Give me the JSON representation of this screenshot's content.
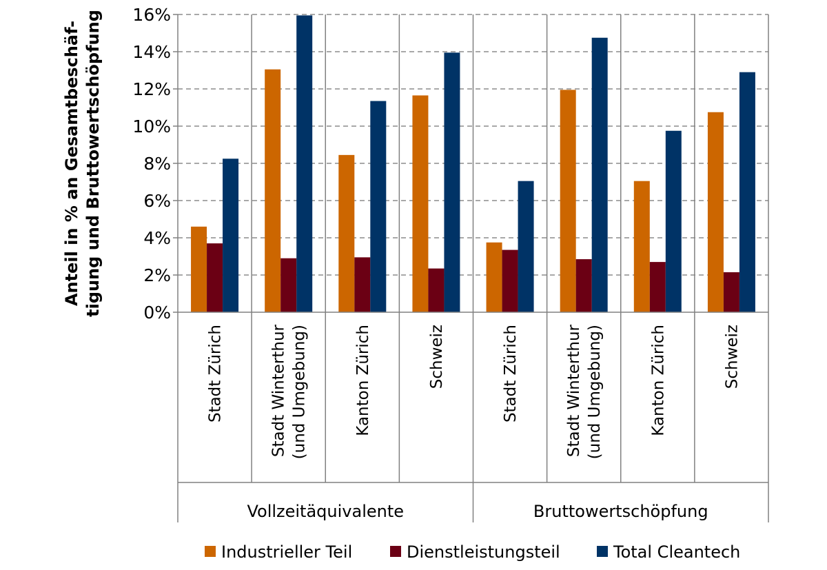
{
  "chart_data": {
    "type": "bar",
    "ylabel_lines": [
      "Anteil in % an Gesamtbeschäf-",
      "tigung  und Bruttowertschöpfung"
    ],
    "ylim": [
      0,
      16
    ],
    "ytick_labels": [
      "0%",
      "2%",
      "4%",
      "6%",
      "8%",
      "10%",
      "12%",
      "14%",
      "16%"
    ],
    "grid": true,
    "legend_position": "bottom",
    "groups": [
      {
        "label": "Vollzeitäquivalente",
        "categories": [
          {
            "lines": [
              "Stadt Zürich"
            ]
          },
          {
            "lines": [
              "Stadt Winterthur",
              "(und Umgebung)"
            ]
          },
          {
            "lines": [
              "Kanton Zürich"
            ]
          },
          {
            "lines": [
              "Schweiz"
            ]
          }
        ]
      },
      {
        "label": "Bruttowertschöpfung",
        "categories": [
          {
            "lines": [
              "Stadt Zürich"
            ]
          },
          {
            "lines": [
              "Stadt Winterthur",
              "(und Umgebung)"
            ]
          },
          {
            "lines": [
              "Kanton Zürich"
            ]
          },
          {
            "lines": [
              "Schweiz"
            ]
          }
        ]
      }
    ],
    "series": [
      {
        "name": "Industrieller Teil",
        "color": "#CC6600",
        "values": [
          4.6,
          13.05,
          8.45,
          11.65,
          3.75,
          11.95,
          7.05,
          10.75
        ]
      },
      {
        "name": "Dienstleistungsteil",
        "color": "#6B0014",
        "values": [
          3.7,
          2.9,
          2.95,
          2.35,
          3.35,
          2.85,
          2.7,
          2.15
        ]
      },
      {
        "name": "Total Cleantech",
        "color": "#003366",
        "values": [
          8.25,
          15.95,
          11.35,
          13.95,
          7.05,
          14.75,
          9.75,
          12.9
        ]
      }
    ]
  }
}
